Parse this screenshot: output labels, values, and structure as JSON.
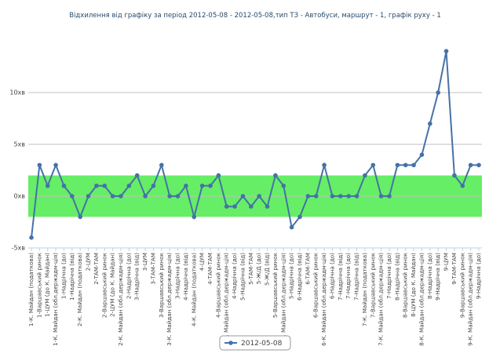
{
  "chart_data": {
    "type": "line",
    "title": "Відхилення від графіку за період 2012-05-08 - 2012-05-08,тип ТЗ - Автобуси, маршрут - 1, графік руху - 1",
    "categories": [
      "1-К. Майдан (податкова)",
      "1-Варшавський ринок",
      "1-ЦУМ (до К. Майдан)",
      "1-К. Майдан (обл.держадм-ція)",
      "1-Надрічна (до)",
      "1-Надрічна (від)",
      "2-К. Майдан (податкова)",
      "2-ЦУМ",
      "2-ТАМ-ТАМ",
      "2-Варшавський ринок",
      "2-ЦУМ (до К. Майдан)",
      "2-К. Майдан (обл.держадм-ція)",
      "2-Надрічна (до)",
      "3-Надрічна (від)",
      "3-ЦУМ",
      "3-ТАМ-ТАМ",
      "3-Варшавський ринок",
      "3-К. Майдан (обл.держадм-ція)",
      "3-Надрічна (до)",
      "4-Надрічна (від)",
      "4-К. Майдан (податкова)",
      "4-ЦУМ",
      "4-ТАМ-ТАМ",
      "4-Варшавський ринок",
      "4-К. Майдан (обл.держадм-ція)",
      "4-Надрічна (до)",
      "5-Надрічна (від)",
      "5-ТАМ-ТАМ",
      "5-Ж/Д (до)",
      "5-Ж/Д (від)",
      "5-Варшавський ринок",
      "5-К. Майдан (обл.держадм-ція)",
      "5-Надрічна (до)",
      "6-Надрічна (від)",
      "6-ТАМ-ТАМ",
      "6-Варшавський ринок",
      "6-К. Майдан (обл.держадм-ція)",
      "6-Надрічна (до)",
      "7-Надрічна (від)",
      "7-Надрічна (до)",
      "7-Надрічна (від)",
      "7-К. Майдан (податкова)",
      "7-Варшавський ринок",
      "7-К. Майдан (обл.держадм-ція)",
      "7-Надрічна (до)",
      "8-Надрічна (від)",
      "8-Варшавський ринок",
      "8-ЦУМ (до К. Майдан)",
      "8-К. Майдан (обл.держадм-ція)",
      "8-Надрічна (до)",
      "9-Надрічна (від)",
      "9-ЦУМ",
      "9-ТАМ-ТАМ",
      "9-Варшавський ринок",
      "9-К. Майдан (обл.держадм-ція)",
      "9-Надрічна (до)"
    ],
    "series": [
      {
        "name": "2012-05-08",
        "color": "#4572a7",
        "values": [
          -4,
          3,
          1,
          3,
          1,
          0,
          -2,
          0,
          1,
          1,
          0,
          0,
          1,
          2,
          0,
          1,
          3,
          0,
          0,
          1,
          -2,
          1,
          1,
          2,
          -1,
          -1,
          0,
          -1,
          0,
          -1,
          2,
          1,
          -3,
          -2,
          0,
          0,
          3,
          0,
          0,
          0,
          0,
          2,
          3,
          0,
          0,
          3,
          3,
          3,
          4,
          7,
          10,
          14,
          2,
          1,
          3,
          3
        ]
      }
    ],
    "ylim": [
      -5,
      15
    ],
    "yticks": [
      {
        "value": -5,
        "label": "-5хв"
      },
      {
        "value": 0,
        "label": "0хв"
      },
      {
        "value": 5,
        "label": "5хв"
      },
      {
        "value": 10,
        "label": "10хв"
      }
    ],
    "bands": [
      {
        "from": -2,
        "to": 2,
        "color": "#66ee66"
      }
    ],
    "grid": true,
    "legend": "bottom"
  }
}
